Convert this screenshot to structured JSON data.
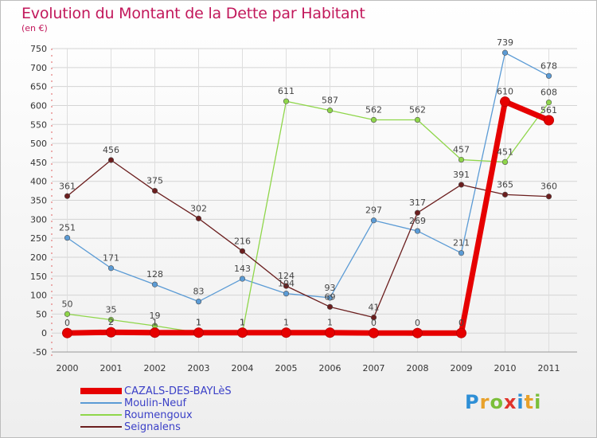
{
  "header": {
    "title": "Evolution du Montant de la Dette par Habitant",
    "subtitle": "(en €)"
  },
  "logo": {
    "text": "Proxiti",
    "colors": [
      "#2e8fd6",
      "#e8a12a",
      "#7bbf3a",
      "#e0342b",
      "#2e8fd6",
      "#e8a12a",
      "#7bbf3a"
    ]
  },
  "chart_data": {
    "type": "line",
    "categories": [
      "2000",
      "2001",
      "2002",
      "2003",
      "2004",
      "2005",
      "2006",
      "2007",
      "2008",
      "2009",
      "2010",
      "2011"
    ],
    "ylim": [
      -50,
      750
    ],
    "yticks": [
      "-50",
      "0",
      "50",
      "100",
      "150",
      "200",
      "250",
      "300",
      "350",
      "400",
      "450",
      "500",
      "550",
      "600",
      "650",
      "700",
      "750"
    ],
    "grid": true,
    "legend_position": "bottom-left",
    "series": [
      {
        "name": "CAZALS-DES-BAYLèS",
        "color": "#e60000",
        "values": [
          0,
          2,
          1,
          1,
          1,
          1,
          1,
          0,
          0,
          0,
          610,
          561
        ],
        "labels": [
          "0",
          "2",
          "1",
          "1",
          "1",
          "1",
          "1",
          "0",
          "0",
          "0",
          "610",
          "561"
        ]
      },
      {
        "name": "Moulin-Neuf",
        "color": "#5b9bd5",
        "values": [
          251,
          171,
          128,
          83,
          143,
          104,
          93,
          297,
          269,
          211,
          739,
          678
        ],
        "labels": [
          "251",
          "171",
          "128",
          "83",
          "143",
          "104",
          "93",
          "297",
          "269",
          "211",
          "739",
          "678"
        ]
      },
      {
        "name": "Roumengoux",
        "color": "#8fd64a",
        "values": [
          50,
          35,
          19,
          1,
          1,
          611,
          587,
          562,
          562,
          457,
          451,
          608
        ],
        "labels": [
          "50",
          "35",
          "19",
          "1",
          "1",
          "611",
          "587",
          "562",
          "562",
          "457",
          "451",
          "608"
        ]
      },
      {
        "name": "Seignalens",
        "color": "#6b1e1e",
        "values": [
          361,
          456,
          375,
          302,
          216,
          124,
          69,
          41,
          317,
          391,
          365,
          360
        ],
        "labels": [
          "361",
          "456",
          "375",
          "302",
          "216",
          "124",
          "69",
          "41",
          "317",
          "391",
          "365",
          "360"
        ]
      }
    ]
  }
}
